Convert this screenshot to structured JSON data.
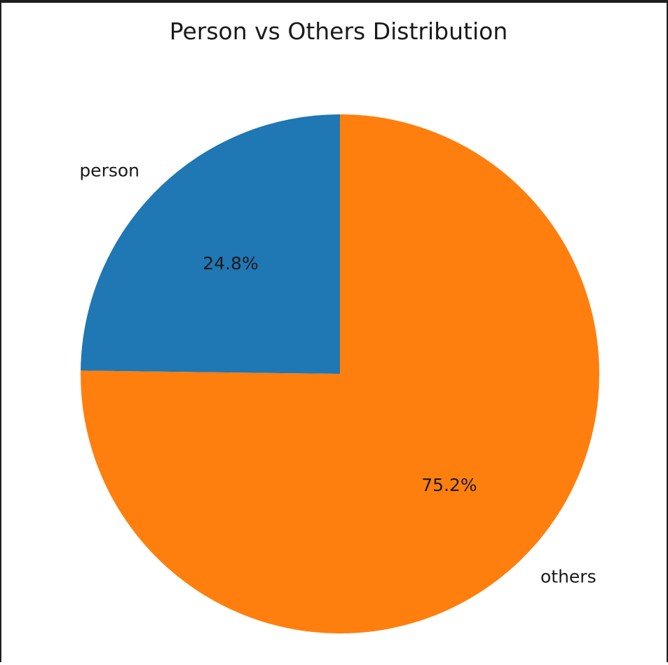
{
  "chart_data": {
    "type": "pie",
    "title": "Person vs Others Distribution",
    "slices": [
      {
        "label": "person",
        "value": 24.8,
        "pct_label": "24.8%",
        "color": "#1f77b4"
      },
      {
        "label": "others",
        "value": 75.2,
        "pct_label": "75.2%",
        "color": "#ff7f0e"
      }
    ],
    "start_angle_deg": 90,
    "direction": "counterclockwise"
  }
}
